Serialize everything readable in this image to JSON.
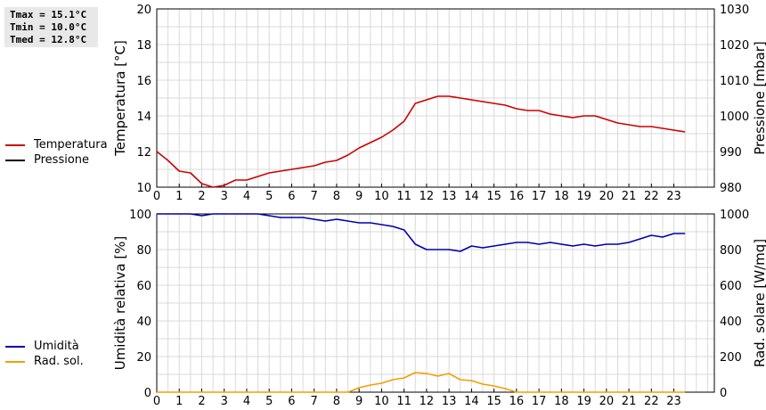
{
  "stats": {
    "tmax": "Tmax = 15.1°C",
    "tmin": "Tmin = 10.0°C",
    "tmed": "Tmed = 12.8°C"
  },
  "colors": {
    "temperature": "#cc0000",
    "pressure": "#000000",
    "humidity": "#0000aa",
    "radiation": "#f0a000",
    "grid": "#d9d9d9"
  },
  "chart_data": [
    {
      "type": "line",
      "title": "",
      "x_ticks": [
        "0",
        "1",
        "2",
        "3",
        "4",
        "5",
        "6",
        "7",
        "8",
        "9",
        "10",
        "11",
        "12",
        "13",
        "14",
        "15",
        "16",
        "17",
        "18",
        "19",
        "20",
        "21",
        "22",
        "23"
      ],
      "xlim": [
        0,
        24.8
      ],
      "ylabel_left": "Temperatura [°C]",
      "ylabel_right": "Pressione [mbar]",
      "ylim_left": [
        10,
        20
      ],
      "ylim_right": [
        980,
        1030
      ],
      "y_ticks_left": [
        "10",
        "12",
        "14",
        "16",
        "18",
        "20"
      ],
      "y_ticks_right": [
        "980",
        "990",
        "1000",
        "1010",
        "1020",
        "1030"
      ],
      "grid": true,
      "legend": [
        "Temperatura",
        "Pressione"
      ],
      "series": [
        {
          "name": "Temperatura",
          "axis": "left",
          "x": [
            0,
            0.5,
            1,
            1.5,
            2,
            2.5,
            3,
            3.5,
            4,
            4.5,
            5,
            5.5,
            6,
            6.5,
            7,
            7.5,
            8,
            8.5,
            9,
            9.5,
            10,
            10.5,
            11,
            11.5,
            12,
            12.5,
            13,
            13.5,
            14,
            14.5,
            15,
            15.5,
            16,
            16.5,
            17,
            17.5,
            18,
            18.5,
            19,
            19.5,
            20,
            20.5,
            21,
            21.5,
            22,
            22.5,
            23,
            23.5
          ],
          "values": [
            12.0,
            11.5,
            10.9,
            10.8,
            10.2,
            10.0,
            10.1,
            10.4,
            10.4,
            10.6,
            10.8,
            10.9,
            11.0,
            11.1,
            11.2,
            11.4,
            11.5,
            11.8,
            12.2,
            12.5,
            12.8,
            13.2,
            13.7,
            14.7,
            14.9,
            15.1,
            15.1,
            15.0,
            14.9,
            14.8,
            14.7,
            14.6,
            14.4,
            14.3,
            14.3,
            14.1,
            14.0,
            13.9,
            14.0,
            14.0,
            13.8,
            13.6,
            13.5,
            13.4,
            13.4,
            13.3,
            13.2,
            13.1
          ]
        }
      ]
    },
    {
      "type": "line",
      "title": "",
      "x_ticks": [
        "0",
        "1",
        "2",
        "3",
        "4",
        "5",
        "6",
        "7",
        "8",
        "9",
        "10",
        "11",
        "12",
        "13",
        "14",
        "15",
        "16",
        "17",
        "18",
        "19",
        "20",
        "21",
        "22",
        "23"
      ],
      "xlim": [
        0,
        24.8
      ],
      "ylabel_left": "Umidità relativa [%]",
      "ylabel_right": "Rad. solare [W/mq]",
      "ylim_left": [
        0,
        100
      ],
      "ylim_right": [
        0,
        1000
      ],
      "y_ticks_left": [
        "0",
        "20",
        "40",
        "60",
        "80",
        "100"
      ],
      "y_ticks_right": [
        "0",
        "200",
        "400",
        "600",
        "800",
        "1000"
      ],
      "grid": true,
      "legend": [
        "Umidità",
        "Rad. sol."
      ],
      "series": [
        {
          "name": "Umidità",
          "axis": "left",
          "x": [
            0,
            0.5,
            1,
            1.5,
            2,
            2.5,
            3,
            3.5,
            4,
            4.5,
            5,
            5.5,
            6,
            6.5,
            7,
            7.5,
            8,
            8.5,
            9,
            9.5,
            10,
            10.5,
            11,
            11.5,
            12,
            12.5,
            13,
            13.5,
            14,
            14.5,
            15,
            15.5,
            16,
            16.5,
            17,
            17.5,
            18,
            18.5,
            19,
            19.5,
            20,
            20.5,
            21,
            21.5,
            22,
            22.5,
            23,
            23.5
          ],
          "values": [
            100,
            100,
            100,
            100,
            99,
            100,
            100,
            100,
            100,
            100,
            99,
            98,
            98,
            98,
            97,
            96,
            97,
            96,
            95,
            95,
            94,
            93,
            91,
            83,
            80,
            80,
            80,
            79,
            82,
            81,
            82,
            83,
            84,
            84,
            83,
            84,
            83,
            82,
            83,
            82,
            83,
            83,
            84,
            86,
            88,
            87,
            89,
            89
          ]
        },
        {
          "name": "Rad. sol.",
          "axis": "right",
          "x": [
            0,
            0.5,
            1,
            1.5,
            2,
            2.5,
            3,
            3.5,
            4,
            4.5,
            5,
            5.5,
            6,
            6.5,
            7,
            7.5,
            8,
            8.5,
            9,
            9.5,
            10,
            10.5,
            11,
            11.5,
            12,
            12.5,
            13,
            13.5,
            14,
            14.5,
            15,
            15.5,
            16,
            16.5,
            17,
            17.5,
            18,
            18.5,
            19,
            19.5,
            20,
            20.5,
            21,
            21.5,
            22,
            22.5,
            23,
            23.5
          ],
          "values": [
            0,
            0,
            0,
            0,
            0,
            0,
            0,
            0,
            0,
            0,
            0,
            0,
            0,
            0,
            0,
            0,
            0,
            0,
            25,
            40,
            50,
            70,
            80,
            110,
            105,
            90,
            105,
            70,
            65,
            45,
            35,
            20,
            0,
            0,
            0,
            0,
            0,
            0,
            0,
            0,
            0,
            0,
            0,
            0,
            0,
            0,
            0,
            0
          ]
        }
      ]
    }
  ]
}
